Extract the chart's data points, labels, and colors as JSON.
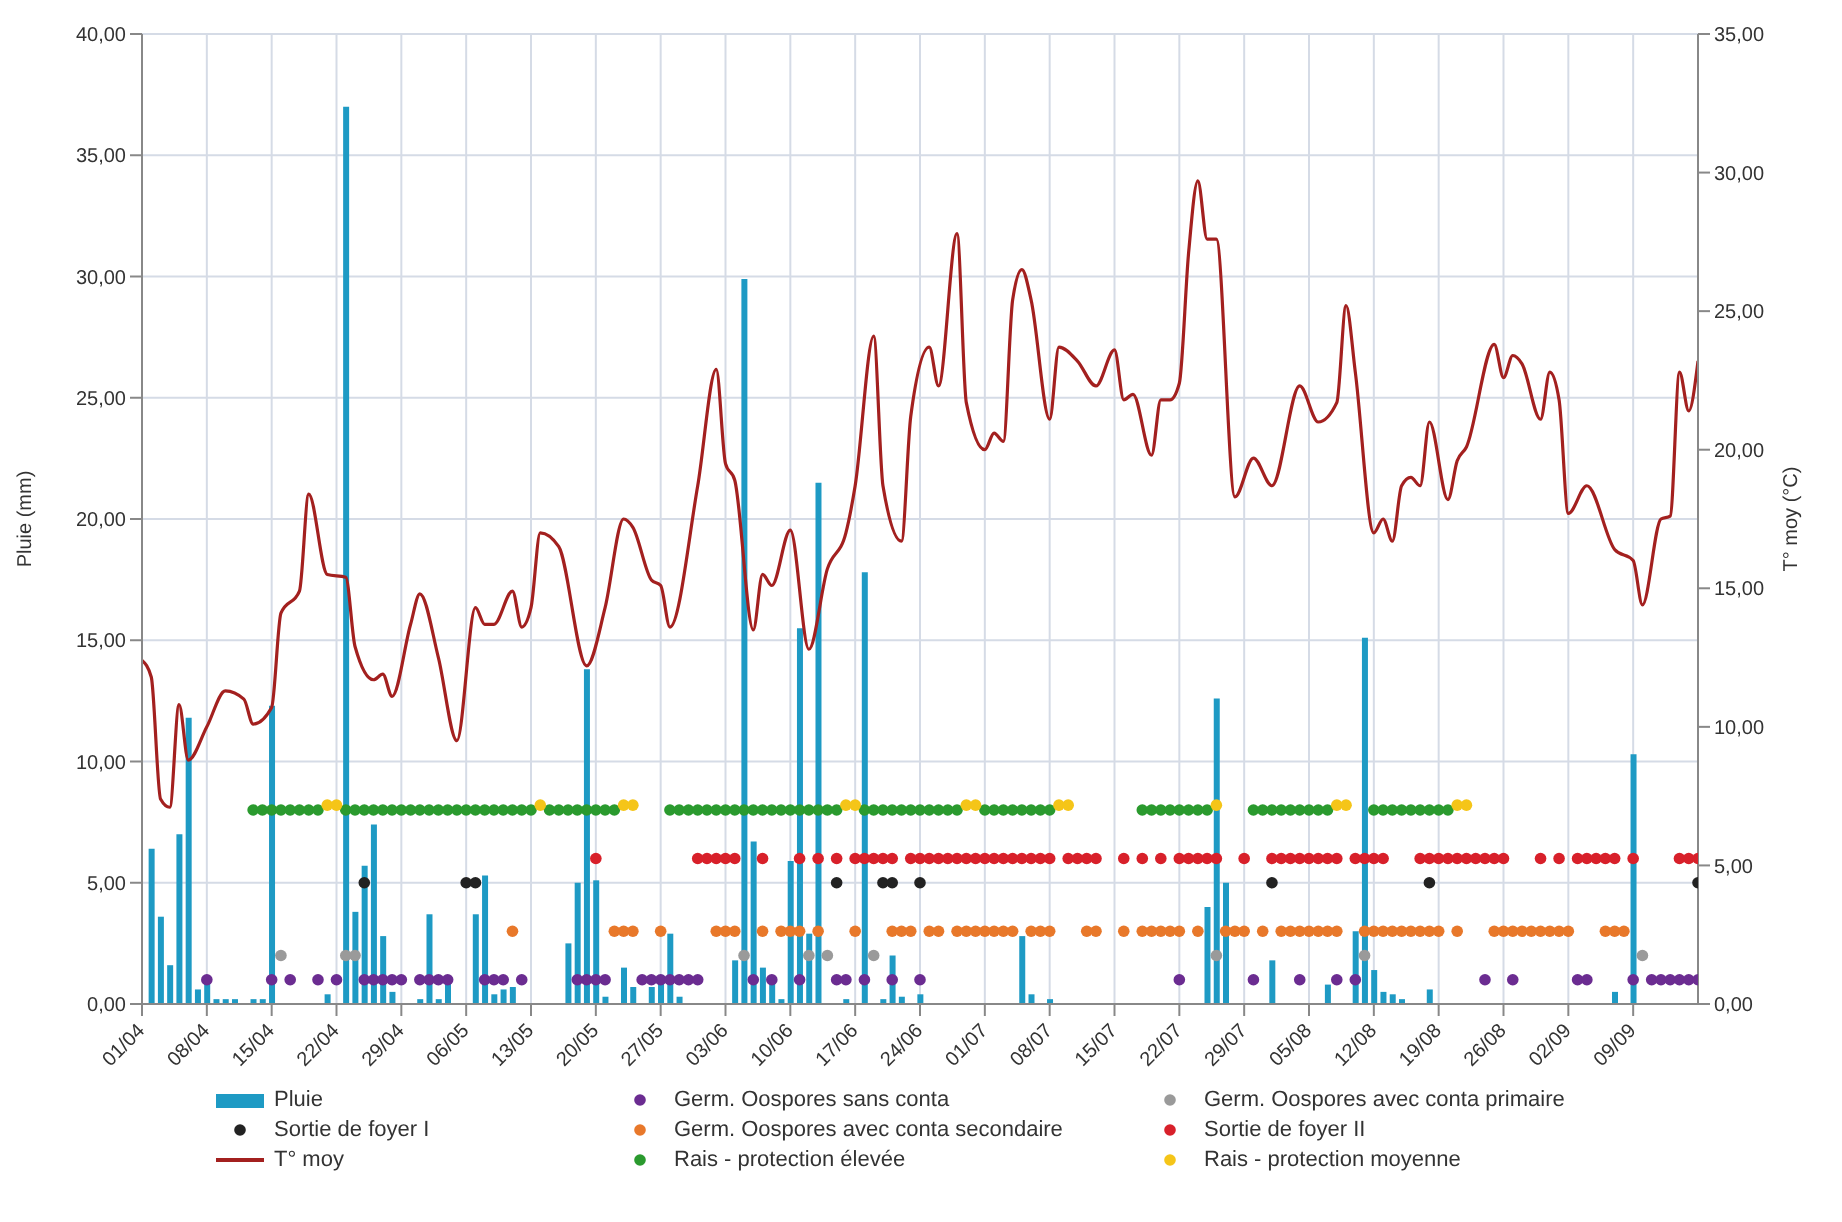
{
  "chart_data": {
    "type": "bar",
    "ylabel": "Pluie (mm)",
    "y2label": "T° moy (°C)",
    "xlim": [
      "--04-01",
      "--09-16"
    ],
    "xticks": [
      {
        "value": "--04-01",
        "label": "01/04"
      },
      {
        "value": "--04-08",
        "label": "08/04"
      },
      {
        "value": "--04-15",
        "label": "15/04"
      },
      {
        "value": "--04-22",
        "label": "22/04"
      },
      {
        "value": "--04-29",
        "label": "29/04"
      },
      {
        "value": "--05-06",
        "label": "06/05"
      },
      {
        "value": "--05-13",
        "label": "13/05"
      },
      {
        "value": "--05-20",
        "label": "20/05"
      },
      {
        "value": "--05-27",
        "label": "27/05"
      },
      {
        "value": "--06-03",
        "label": "03/06"
      },
      {
        "value": "--06-10",
        "label": "10/06"
      },
      {
        "value": "--06-17",
        "label": "17/06"
      },
      {
        "value": "--06-24",
        "label": "24/06"
      },
      {
        "value": "--07-01",
        "label": "01/07"
      },
      {
        "value": "--07-08",
        "label": "08/07"
      },
      {
        "value": "--07-15",
        "label": "15/07"
      },
      {
        "value": "--07-22",
        "label": "22/07"
      },
      {
        "value": "--07-29",
        "label": "29/07"
      },
      {
        "value": "--08-05",
        "label": "05/08"
      },
      {
        "value": "--08-12",
        "label": "12/08"
      },
      {
        "value": "--08-19",
        "label": "19/08"
      },
      {
        "value": "--08-26",
        "label": "26/08"
      },
      {
        "value": "--09-02",
        "label": "02/09"
      },
      {
        "value": "--09-09",
        "label": "09/09"
      }
    ],
    "ylim": [
      0,
      40
    ],
    "yticks": [
      {
        "value": 0,
        "label": "0,00"
      },
      {
        "value": 5,
        "label": "5,00"
      },
      {
        "value": 10,
        "label": "10,00"
      },
      {
        "value": 15,
        "label": "15,00"
      },
      {
        "value": 20,
        "label": "20,00"
      },
      {
        "value": 25,
        "label": "25,00"
      },
      {
        "value": 30,
        "label": "30,00"
      },
      {
        "value": 35,
        "label": "35,00"
      },
      {
        "value": 40,
        "label": "40,00"
      }
    ],
    "y2lim": [
      0,
      35
    ],
    "y2ticks": [
      {
        "value": 0,
        "label": "0,00"
      },
      {
        "value": 5,
        "label": "5,00"
      },
      {
        "value": 10,
        "label": "10,00"
      },
      {
        "value": 15,
        "label": "15,00"
      },
      {
        "value": 20,
        "label": "20,00"
      },
      {
        "value": 25,
        "label": "25,00"
      },
      {
        "value": 30,
        "label": "30,00"
      },
      {
        "value": 35,
        "label": "35,00"
      }
    ],
    "grid": true,
    "legend": "bottom",
    "marker": "circle",
    "series": [
      {
        "name": "Pluie",
        "color": "#1e9ac4",
        "x": [
          "--04-02",
          "--04-03",
          "--04-04",
          "--04-05",
          "--04-06",
          "--04-07",
          "--04-08",
          "--04-09",
          "--04-10",
          "--04-11",
          "--04-13",
          "--04-14",
          "--04-15",
          "--04-21",
          "--04-23",
          "--04-24",
          "--04-25",
          "--04-26",
          "--04-27",
          "--04-28",
          "--05-01",
          "--05-02",
          "--05-03",
          "--05-04",
          "--05-07",
          "--05-08",
          "--05-09",
          "--05-10",
          "--05-11",
          "--05-17",
          "--05-18",
          "--05-19",
          "--05-20",
          "--05-21",
          "--05-23",
          "--05-24",
          "--05-26",
          "--05-27",
          "--05-28",
          "--05-29",
          "--06-04",
          "--06-05",
          "--06-06",
          "--06-07",
          "--06-08",
          "--06-09",
          "--06-10",
          "--06-11",
          "--06-12",
          "--06-13",
          "--06-16",
          "--06-18",
          "--06-20",
          "--06-21",
          "--06-22",
          "--06-24",
          "--07-05",
          "--07-06",
          "--07-08",
          "--07-25",
          "--07-26",
          "--07-27",
          "--08-01",
          "--08-07",
          "--08-10",
          "--08-11",
          "--08-12",
          "--08-13",
          "--08-14",
          "--08-15",
          "--08-18",
          "--09-07",
          "--09-09"
        ],
        "values": [
          6.4,
          3.6,
          1.6,
          7.0,
          11.8,
          0.6,
          0.9,
          0.2,
          0.2,
          0.2,
          0.2,
          0.2,
          12.3,
          0.4,
          37.0,
          3.8,
          5.7,
          7.4,
          2.8,
          0.5,
          0.2,
          3.7,
          0.2,
          0.9,
          3.7,
          5.3,
          0.4,
          0.6,
          0.7,
          2.5,
          5.0,
          13.8,
          5.1,
          0.3,
          1.5,
          0.7,
          0.7,
          1.2,
          2.9,
          0.3,
          1.8,
          29.9,
          6.7,
          1.5,
          1.1,
          0.2,
          5.9,
          15.5,
          2.9,
          21.5,
          0.2,
          17.8,
          0.2,
          2.0,
          0.3,
          0.4,
          2.8,
          0.4,
          0.2,
          4.0,
          12.6,
          5.0,
          1.8,
          0.8,
          3.0,
          15.1,
          1.4,
          0.5,
          0.4,
          0.2,
          0.6,
          0.5,
          10.3
        ]
      },
      {
        "name": "Germ. Oospores sans conta",
        "type": "scatter",
        "color": "#6b2c91",
        "x": [
          "--04-08",
          "--04-15",
          "--04-17",
          "--04-20",
          "--04-22",
          "--04-25",
          "--04-26",
          "--04-27",
          "--04-28",
          "--04-29",
          "--05-01",
          "--05-02",
          "--05-03",
          "--05-04",
          "--05-08",
          "--05-09",
          "--05-10",
          "--05-12",
          "--05-18",
          "--05-19",
          "--05-20",
          "--05-21",
          "--05-25",
          "--05-26",
          "--05-27",
          "--05-28",
          "--05-29",
          "--05-30",
          "--05-31",
          "--06-06",
          "--06-08",
          "--06-11",
          "--06-15",
          "--06-16",
          "--06-18",
          "--06-21",
          "--06-24",
          "--07-22",
          "--07-30",
          "--08-04",
          "--08-08",
          "--08-10",
          "--08-24",
          "--08-27",
          "--09-03",
          "--09-04",
          "--09-09",
          "--09-11",
          "--09-12",
          "--09-13",
          "--09-14",
          "--09-15",
          "--09-16"
        ],
        "values": [
          1,
          1,
          1,
          1,
          1,
          1,
          1,
          1,
          1,
          1,
          1,
          1,
          1,
          1,
          1,
          1,
          1,
          1,
          1,
          1,
          1,
          1,
          1,
          1,
          1,
          1,
          1,
          1,
          1,
          1,
          1,
          1,
          1,
          1,
          1,
          1,
          1,
          1,
          1,
          1,
          1,
          1,
          1,
          1,
          1,
          1,
          1,
          1,
          1,
          1,
          1,
          1,
          1
        ]
      },
      {
        "name": "Germ. Oospores avec conta primaire",
        "type": "scatter",
        "color": "#9a9a9a",
        "x": [
          "--04-16",
          "--04-23",
          "--04-24",
          "--06-05",
          "--06-12",
          "--06-14",
          "--06-19",
          "--07-26",
          "--08-11",
          "--09-10"
        ],
        "values": [
          2,
          2,
          2,
          2,
          2,
          2,
          2,
          2,
          2,
          2
        ]
      },
      {
        "name": "Sortie de foyer I",
        "type": "scatter",
        "color": "#222222",
        "x": [
          "--04-25",
          "--05-06",
          "--05-07",
          "--06-15",
          "--06-20",
          "--06-21",
          "--06-24",
          "--08-01",
          "--08-18",
          "--09-16"
        ],
        "values": [
          5,
          5,
          5,
          5,
          5,
          5,
          5,
          5,
          5,
          5
        ]
      },
      {
        "name": "Germ. Oospores avec conta secondaire",
        "type": "scatter",
        "color": "#e8782a",
        "x": [
          "--05-11",
          "--05-22",
          "--05-23",
          "--05-24",
          "--05-27",
          "--06-02",
          "--06-03",
          "--06-04",
          "--06-07",
          "--06-09",
          "--06-10",
          "--06-11",
          "--06-13",
          "--06-17",
          "--06-21",
          "--06-22",
          "--06-23",
          "--06-25",
          "--06-26",
          "--06-28",
          "--06-29",
          "--06-30",
          "--07-01",
          "--07-02",
          "--07-03",
          "--07-04",
          "--07-06",
          "--07-07",
          "--07-08",
          "--07-12",
          "--07-13",
          "--07-16",
          "--07-18",
          "--07-19",
          "--07-20",
          "--07-21",
          "--07-22",
          "--07-24",
          "--07-27",
          "--07-28",
          "--07-29",
          "--07-31",
          "--08-02",
          "--08-03",
          "--08-04",
          "--08-05",
          "--08-06",
          "--08-07",
          "--08-08",
          "--08-11",
          "--08-12",
          "--08-13",
          "--08-14",
          "--08-15",
          "--08-16",
          "--08-17",
          "--08-18",
          "--08-19",
          "--08-21",
          "--08-25",
          "--08-26",
          "--08-27",
          "--08-28",
          "--08-29",
          "--08-30",
          "--08-31",
          "--09-01",
          "--09-02",
          "--09-06",
          "--09-07",
          "--09-08"
        ],
        "values": [
          3,
          3,
          3,
          3,
          3,
          3,
          3,
          3,
          3,
          3,
          3,
          3,
          3,
          3,
          3,
          3,
          3,
          3,
          3,
          3,
          3,
          3,
          3,
          3,
          3,
          3,
          3,
          3,
          3,
          3,
          3,
          3,
          3,
          3,
          3,
          3,
          3,
          3,
          3,
          3,
          3,
          3,
          3,
          3,
          3,
          3,
          3,
          3,
          3,
          3,
          3,
          3,
          3,
          3,
          3,
          3,
          3,
          3,
          3,
          3,
          3,
          3,
          3,
          3,
          3,
          3,
          3,
          3,
          3,
          3,
          3
        ]
      },
      {
        "name": "Sortie de foyer II",
        "type": "scatter",
        "color": "#d8202a",
        "x": [
          "--05-20",
          "--05-31",
          "--06-01",
          "--06-02",
          "--06-03",
          "--06-04",
          "--06-07",
          "--06-11",
          "--06-13",
          "--06-15",
          "--06-17",
          "--06-18",
          "--06-19",
          "--06-20",
          "--06-21",
          "--06-23",
          "--06-24",
          "--06-25",
          "--06-26",
          "--06-27",
          "--06-28",
          "--06-29",
          "--06-30",
          "--07-01",
          "--07-02",
          "--07-03",
          "--07-04",
          "--07-05",
          "--07-06",
          "--07-07",
          "--07-08",
          "--07-10",
          "--07-11",
          "--07-12",
          "--07-13",
          "--07-16",
          "--07-18",
          "--07-20",
          "--07-22",
          "--07-23",
          "--07-24",
          "--07-25",
          "--07-26",
          "--07-29",
          "--08-01",
          "--08-02",
          "--08-03",
          "--08-04",
          "--08-05",
          "--08-06",
          "--08-07",
          "--08-08",
          "--08-10",
          "--08-11",
          "--08-12",
          "--08-13",
          "--08-17",
          "--08-18",
          "--08-19",
          "--08-20",
          "--08-21",
          "--08-22",
          "--08-23",
          "--08-24",
          "--08-25",
          "--08-26",
          "--08-30",
          "--09-01",
          "--09-03",
          "--09-04",
          "--09-05",
          "--09-06",
          "--09-07",
          "--09-09",
          "--09-14",
          "--09-15",
          "--09-16"
        ],
        "values": [
          6,
          6,
          6,
          6,
          6,
          6,
          6,
          6,
          6,
          6,
          6,
          6,
          6,
          6,
          6,
          6,
          6,
          6,
          6,
          6,
          6,
          6,
          6,
          6,
          6,
          6,
          6,
          6,
          6,
          6,
          6,
          6,
          6,
          6,
          6,
          6,
          6,
          6,
          6,
          6,
          6,
          6,
          6,
          6,
          6,
          6,
          6,
          6,
          6,
          6,
          6,
          6,
          6,
          6,
          6,
          6,
          6,
          6,
          6,
          6,
          6,
          6,
          6,
          6,
          6,
          6,
          6,
          6,
          6,
          6,
          6,
          6,
          6,
          6,
          6,
          6,
          6
        ]
      },
      {
        "name": "T° moy",
        "type": "line",
        "marker": "none",
        "axis": "y2",
        "color": "#a3201f",
        "x": [
          "--04-01",
          "--04-02",
          "--04-03",
          "--04-04",
          "--04-05",
          "--04-06",
          "--04-08",
          "--04-10",
          "--04-12",
          "--04-13",
          "--04-15",
          "--04-16",
          "--04-18",
          "--04-19",
          "--04-21",
          "--04-23",
          "--04-24",
          "--04-26",
          "--04-27",
          "--04-28",
          "--04-30",
          "--05-01",
          "--05-03",
          "--05-05",
          "--05-07",
          "--05-08",
          "--05-09",
          "--05-11",
          "--05-12",
          "--05-13",
          "--05-14",
          "--05-16",
          "--05-19",
          "--05-21",
          "--05-23",
          "--05-24",
          "--05-26",
          "--05-27",
          "--05-28",
          "--05-31",
          "--06-02",
          "--06-03",
          "--06-04",
          "--06-06",
          "--06-07",
          "--06-08",
          "--06-10",
          "--06-12",
          "--06-14",
          "--06-16",
          "--06-17",
          "--06-19",
          "--06-20",
          "--06-22",
          "--06-23",
          "--06-25",
          "--06-26",
          "--06-28",
          "--06-29",
          "--07-01",
          "--07-02",
          "--07-03",
          "--07-04",
          "--07-05",
          "--07-06",
          "--07-08",
          "--07-09",
          "--07-11",
          "--07-13",
          "--07-15",
          "--07-16",
          "--07-17",
          "--07-19",
          "--07-20",
          "--07-21",
          "--07-22",
          "--07-23",
          "--07-24",
          "--07-25",
          "--07-26",
          "--07-28",
          "--07-30",
          "--08-01",
          "--08-04",
          "--08-06",
          "--08-08",
          "--08-09",
          "--08-10",
          "--08-12",
          "--08-13",
          "--08-14",
          "--08-15",
          "--08-16",
          "--08-17",
          "--08-18",
          "--08-20",
          "--08-21",
          "--08-22",
          "--08-25",
          "--08-26",
          "--08-27",
          "--08-28",
          "--08-30",
          "--08-31",
          "--09-01",
          "--09-02",
          "--09-04",
          "--09-07",
          "--09-09",
          "--09-10",
          "--09-12",
          "--09-13",
          "--09-14",
          "--09-15",
          "--09-16"
        ],
        "values": [
          12.4,
          11.8,
          7.4,
          7.1,
          10.8,
          8.8,
          10.0,
          11.3,
          11.0,
          10.1,
          10.7,
          14.1,
          14.9,
          18.4,
          15.5,
          15.4,
          12.9,
          11.7,
          11.9,
          11.1,
          13.7,
          14.8,
          12.5,
          9.5,
          14.3,
          13.7,
          13.7,
          14.9,
          13.6,
          14.3,
          17.0,
          16.5,
          12.2,
          14.3,
          17.5,
          17.2,
          15.3,
          15.1,
          13.6,
          18.7,
          22.9,
          19.5,
          18.9,
          13.5,
          15.5,
          15.1,
          17.1,
          12.8,
          15.7,
          17.0,
          18.7,
          24.1,
          18.7,
          16.7,
          21.2,
          23.7,
          22.3,
          27.8,
          21.7,
          20.0,
          20.6,
          20.3,
          25.4,
          26.5,
          25.4,
          21.1,
          23.7,
          23.2,
          22.3,
          23.6,
          21.8,
          22.0,
          19.8,
          21.8,
          21.8,
          22.4,
          27.1,
          29.7,
          27.6,
          27.6,
          18.3,
          19.7,
          18.7,
          22.3,
          21.0,
          21.7,
          25.2,
          22.8,
          17.0,
          17.5,
          16.7,
          18.7,
          19.0,
          18.7,
          21.0,
          18.2,
          19.6,
          20.1,
          23.8,
          22.6,
          23.4,
          23.1,
          21.1,
          22.8,
          21.8,
          17.7,
          18.7,
          16.4,
          16.0,
          14.4,
          17.5,
          17.6,
          22.8,
          21.4,
          23.2
        ]
      },
      {
        "name": "Rais - protection élevée",
        "type": "scatter",
        "color": "#2a9a2e",
        "x": [
          "--04-13",
          "--04-14",
          "--04-15",
          "--04-16",
          "--04-17",
          "--04-18",
          "--04-19",
          "--04-20",
          "--04-23",
          "--04-24",
          "--04-25",
          "--04-26",
          "--04-27",
          "--04-28",
          "--04-29",
          "--04-30",
          "--05-01",
          "--05-02",
          "--05-03",
          "--05-04",
          "--05-05",
          "--05-06",
          "--05-07",
          "--05-08",
          "--05-09",
          "--05-10",
          "--05-11",
          "--05-12",
          "--05-13",
          "--05-15",
          "--05-16",
          "--05-17",
          "--05-18",
          "--05-19",
          "--05-20",
          "--05-21",
          "--05-22",
          "--05-28",
          "--05-29",
          "--05-30",
          "--05-31",
          "--06-01",
          "--06-02",
          "--06-03",
          "--06-04",
          "--06-05",
          "--06-06",
          "--06-07",
          "--06-08",
          "--06-09",
          "--06-10",
          "--06-11",
          "--06-12",
          "--06-13",
          "--06-14",
          "--06-15",
          "--06-18",
          "--06-19",
          "--06-20",
          "--06-21",
          "--06-22",
          "--06-23",
          "--06-24",
          "--06-25",
          "--06-26",
          "--06-27",
          "--06-28",
          "--07-01",
          "--07-02",
          "--07-03",
          "--07-04",
          "--07-05",
          "--07-06",
          "--07-07",
          "--07-08",
          "--07-18",
          "--07-19",
          "--07-20",
          "--07-21",
          "--07-22",
          "--07-23",
          "--07-24",
          "--07-25",
          "--07-30",
          "--07-31",
          "--08-01",
          "--08-02",
          "--08-03",
          "--08-04",
          "--08-05",
          "--08-06",
          "--08-07",
          "--08-12",
          "--08-13",
          "--08-14",
          "--08-15",
          "--08-16",
          "--08-17",
          "--08-18",
          "--08-19",
          "--08-20"
        ],
        "values": [
          8,
          8,
          8,
          8,
          8,
          8,
          8,
          8,
          8,
          8,
          8,
          8,
          8,
          8,
          8,
          8,
          8,
          8,
          8,
          8,
          8,
          8,
          8,
          8,
          8,
          8,
          8,
          8,
          8,
          8,
          8,
          8,
          8,
          8,
          8,
          8,
          8,
          8,
          8,
          8,
          8,
          8,
          8,
          8,
          8,
          8,
          8,
          8,
          8,
          8,
          8,
          8,
          8,
          8,
          8,
          8,
          8,
          8,
          8,
          8,
          8,
          8,
          8,
          8,
          8,
          8,
          8,
          8,
          8,
          8,
          8,
          8,
          8,
          8,
          8,
          8,
          8,
          8,
          8,
          8,
          8,
          8,
          8,
          8,
          8,
          8,
          8,
          8,
          8,
          8,
          8,
          8,
          8,
          8,
          8,
          8,
          8,
          8,
          8,
          8,
          8
        ]
      },
      {
        "name": "Rais - protection moyenne",
        "type": "scatter",
        "color": "#f5c518",
        "x": [
          "--04-21",
          "--04-22",
          "--05-14",
          "--05-23",
          "--05-24",
          "--06-16",
          "--06-17",
          "--06-29",
          "--06-30",
          "--07-09",
          "--07-10",
          "--07-26",
          "--08-08",
          "--08-09",
          "--08-21",
          "--08-22"
        ],
        "values": [
          8.2,
          8.2,
          8.2,
          8.2,
          8.2,
          8.2,
          8.2,
          8.2,
          8.2,
          8.2,
          8.2,
          8.2,
          8.2,
          8.2,
          8.2,
          8.2
        ]
      }
    ]
  }
}
